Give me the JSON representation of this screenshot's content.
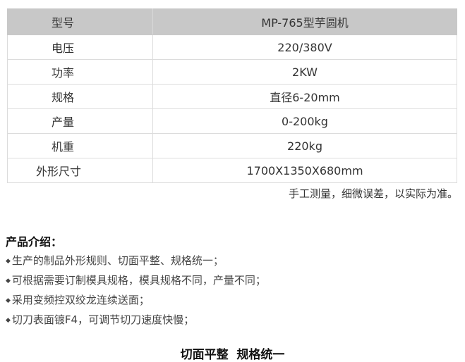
{
  "spec_table": {
    "header": {
      "key": "型号",
      "value": "MP-765型芋圆机"
    },
    "rows": [
      {
        "key": "电压",
        "value": "220/380V"
      },
      {
        "key": "功率",
        "value": "2KW"
      },
      {
        "key": "规格",
        "value": "直径6-20mm"
      },
      {
        "key": "产量",
        "value": "0-200kg"
      },
      {
        "key": "机重",
        "value": "220kg"
      },
      {
        "key": "外形尺寸",
        "value": "1700X1350X680mm"
      }
    ]
  },
  "note": "手工测量，细微误差，以实际为准。",
  "intro": {
    "heading": "产品介绍：",
    "bullet_icon": "diamond-bullet",
    "bullet_glyph": "◆",
    "items": [
      "生产的制品外形规则、切面平整、规格统一；",
      "可根据需要订制模具规格，模具规格不同，产量不同；",
      "采用变频控双绞龙连续送面；",
      "切刀表面镀F4，可调节切刀速度快慢；"
    ]
  },
  "footer_heading": "切面平整  规格统一"
}
